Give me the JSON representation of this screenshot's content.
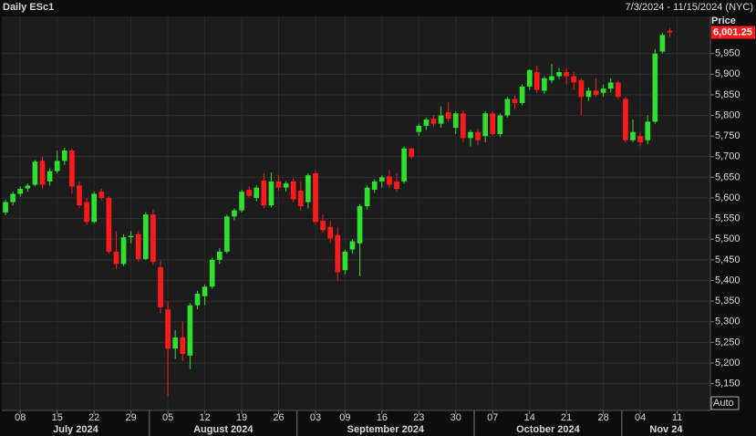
{
  "chart_data": {
    "type": "candlestick",
    "title": "Daily ESc1",
    "subtitle": "7/3/2024 - 11/15/2024 (NYC)",
    "axis_title": "Price",
    "scale_mode": "Auto",
    "last_price": {
      "value": 6001.25,
      "label": "6,001.25"
    },
    "categories": [
      null,
      null,
      "08",
      null,
      null,
      null,
      null,
      "15",
      null,
      null,
      null,
      null,
      "22",
      null,
      null,
      null,
      null,
      "29",
      null,
      null,
      null,
      null,
      "05",
      null,
      null,
      null,
      null,
      "12",
      null,
      null,
      null,
      null,
      "19",
      null,
      null,
      null,
      null,
      "26",
      null,
      null,
      null,
      null,
      "03",
      null,
      null,
      null,
      "09",
      null,
      null,
      null,
      null,
      "16",
      null,
      null,
      null,
      null,
      "23",
      null,
      null,
      null,
      null,
      "30",
      null,
      null,
      null,
      null,
      "07",
      null,
      null,
      null,
      null,
      "14",
      null,
      null,
      null,
      null,
      "21",
      null,
      null,
      null,
      null,
      "28",
      null,
      null,
      null,
      null,
      "04",
      null,
      null,
      null,
      null,
      "11",
      null,
      null,
      null,
      null
    ],
    "month_labels": [
      "July 2024",
      "August 2024",
      "September 2024",
      "October 2024",
      "Nov 24"
    ],
    "open": [
      5565,
      5590,
      5610,
      5623,
      5632,
      5690,
      5640,
      5665,
      5690,
      5715,
      5630,
      5590,
      5542,
      5615,
      5600,
      5470,
      5440,
      5505,
      5512,
      5452,
      5560,
      5432,
      5330,
      5235,
      5262,
      5218,
      5340,
      5362,
      5385,
      5450,
      5470,
      5555,
      5570,
      5620,
      5600,
      5642,
      5582,
      5640,
      5625,
      5640,
      5618,
      5590,
      5660,
      5545,
      5530,
      5510,
      5425,
      5475,
      5490,
      5580,
      5620,
      5640,
      5652,
      5640,
      5640,
      5720,
      5760,
      5775,
      5792,
      5780,
      5808,
      5770,
      5805,
      5745,
      5760,
      5750,
      5805,
      5755,
      5800,
      5840,
      5830,
      5870,
      5905,
      5860,
      5885,
      5895,
      5905,
      5895,
      5885,
      5845,
      5860,
      5855,
      5865,
      5880,
      5840,
      5740,
      5750,
      5740,
      5785,
      5955,
      6005,
      null,
      null,
      null,
      null,
      null
    ],
    "high": [
      5595,
      5615,
      5628,
      5635,
      5692,
      5700,
      5672,
      5715,
      5722,
      5720,
      5640,
      5600,
      5615,
      5622,
      5605,
      5520,
      5512,
      5520,
      5520,
      5565,
      5572,
      5448,
      5350,
      5280,
      5300,
      5345,
      5375,
      5390,
      5455,
      5478,
      5560,
      5575,
      5620,
      5628,
      5630,
      5660,
      5662,
      5655,
      5640,
      5648,
      5640,
      5660,
      5665,
      5560,
      5545,
      5530,
      5475,
      5500,
      5585,
      5630,
      5645,
      5655,
      5668,
      5660,
      5725,
      5722,
      5780,
      5795,
      5800,
      5822,
      5832,
      5810,
      5812,
      5765,
      5768,
      5810,
      5810,
      5805,
      5845,
      5848,
      5875,
      5912,
      5920,
      5895,
      5925,
      5915,
      5915,
      5905,
      5890,
      5868,
      5890,
      5875,
      5890,
      5885,
      5845,
      5790,
      5760,
      5800,
      5960,
      6000,
      6012,
      null,
      null,
      null,
      null,
      null
    ],
    "low": [
      5558,
      5582,
      5603,
      5615,
      5628,
      5622,
      5630,
      5660,
      5680,
      5610,
      5575,
      5535,
      5538,
      5595,
      5465,
      5428,
      5435,
      5490,
      5445,
      5450,
      5438,
      5320,
      5120,
      5210,
      5205,
      5185,
      5330,
      5340,
      5380,
      5440,
      5465,
      5545,
      5565,
      5600,
      5592,
      5575,
      5578,
      5618,
      5615,
      5590,
      5570,
      5575,
      5535,
      5515,
      5490,
      5400,
      5415,
      5465,
      5410,
      5572,
      5612,
      5625,
      5625,
      5615,
      5635,
      5695,
      5750,
      5765,
      5772,
      5770,
      5785,
      5755,
      5735,
      5725,
      5728,
      5735,
      5750,
      5748,
      5795,
      5815,
      5825,
      5862,
      5855,
      5852,
      5878,
      5888,
      5875,
      5862,
      5800,
      5835,
      5845,
      5845,
      5855,
      5840,
      5735,
      5735,
      5725,
      5730,
      5780,
      5950,
      5990,
      null,
      null,
      null,
      null,
      null
    ],
    "close": [
      5590,
      5610,
      5622,
      5630,
      5688,
      5632,
      5665,
      5690,
      5715,
      5628,
      5582,
      5542,
      5610,
      5600,
      5470,
      5440,
      5505,
      5508,
      5452,
      5560,
      5445,
      5335,
      5235,
      5262,
      5222,
      5340,
      5368,
      5385,
      5450,
      5470,
      5555,
      5570,
      5615,
      5605,
      5625,
      5582,
      5640,
      5625,
      5635,
      5597,
      5580,
      5655,
      5542,
      5522,
      5502,
      5420,
      5470,
      5495,
      5580,
      5625,
      5640,
      5650,
      5632,
      5622,
      5720,
      5700,
      5775,
      5790,
      5780,
      5800,
      5792,
      5805,
      5745,
      5760,
      5740,
      5805,
      5755,
      5800,
      5840,
      5830,
      5870,
      5910,
      5862,
      5890,
      5895,
      5905,
      5895,
      5880,
      5845,
      5860,
      5850,
      5865,
      5880,
      5845,
      5740,
      5760,
      5735,
      5785,
      5950,
      5995,
      6001.25,
      null,
      null,
      null,
      null,
      null
    ],
    "up_color": "#2fe02f",
    "down_color": "#ff1a1a",
    "grid": true,
    "ylim": [
      5085,
      6040
    ],
    "yticks": [
      {
        "value": 5150,
        "label": "5,150"
      },
      {
        "value": 5200,
        "label": "5,200"
      },
      {
        "value": 5250,
        "label": "5,250"
      },
      {
        "value": 5300,
        "label": "5,300"
      },
      {
        "value": 5350,
        "label": "5,350"
      },
      {
        "value": 5400,
        "label": "5,400"
      },
      {
        "value": 5450,
        "label": "5,450"
      },
      {
        "value": 5500,
        "label": "5,500"
      },
      {
        "value": 5550,
        "label": "5,550"
      },
      {
        "value": 5600,
        "label": "5,600"
      },
      {
        "value": 5650,
        "label": "5,650"
      },
      {
        "value": 5700,
        "label": "5,700"
      },
      {
        "value": 5750,
        "label": "5,750"
      },
      {
        "value": 5800,
        "label": "5,800"
      },
      {
        "value": 5850,
        "label": "5,850"
      },
      {
        "value": 5900,
        "label": "5,900"
      },
      {
        "value": 5950,
        "label": "5,950"
      }
    ]
  }
}
